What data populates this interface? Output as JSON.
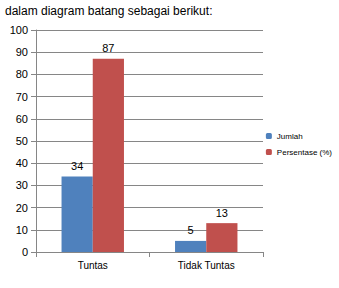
{
  "chart_data": {
    "type": "bar",
    "title": "dalam diagram batang sebagai berikut:",
    "categories": [
      "Tuntas",
      "Tidak Tuntas"
    ],
    "series": [
      {
        "name": "Jumlah",
        "color": "#4f81bd",
        "values": [
          34,
          5
        ]
      },
      {
        "name": "Persentase (%)",
        "color": "#c0504d",
        "values": [
          87,
          13
        ]
      }
    ],
    "ylim": [
      0,
      100
    ],
    "yticks": [
      0,
      10,
      20,
      30,
      40,
      50,
      60,
      70,
      80,
      90,
      100
    ],
    "grid": true,
    "legend": "right",
    "data_labels": true
  }
}
